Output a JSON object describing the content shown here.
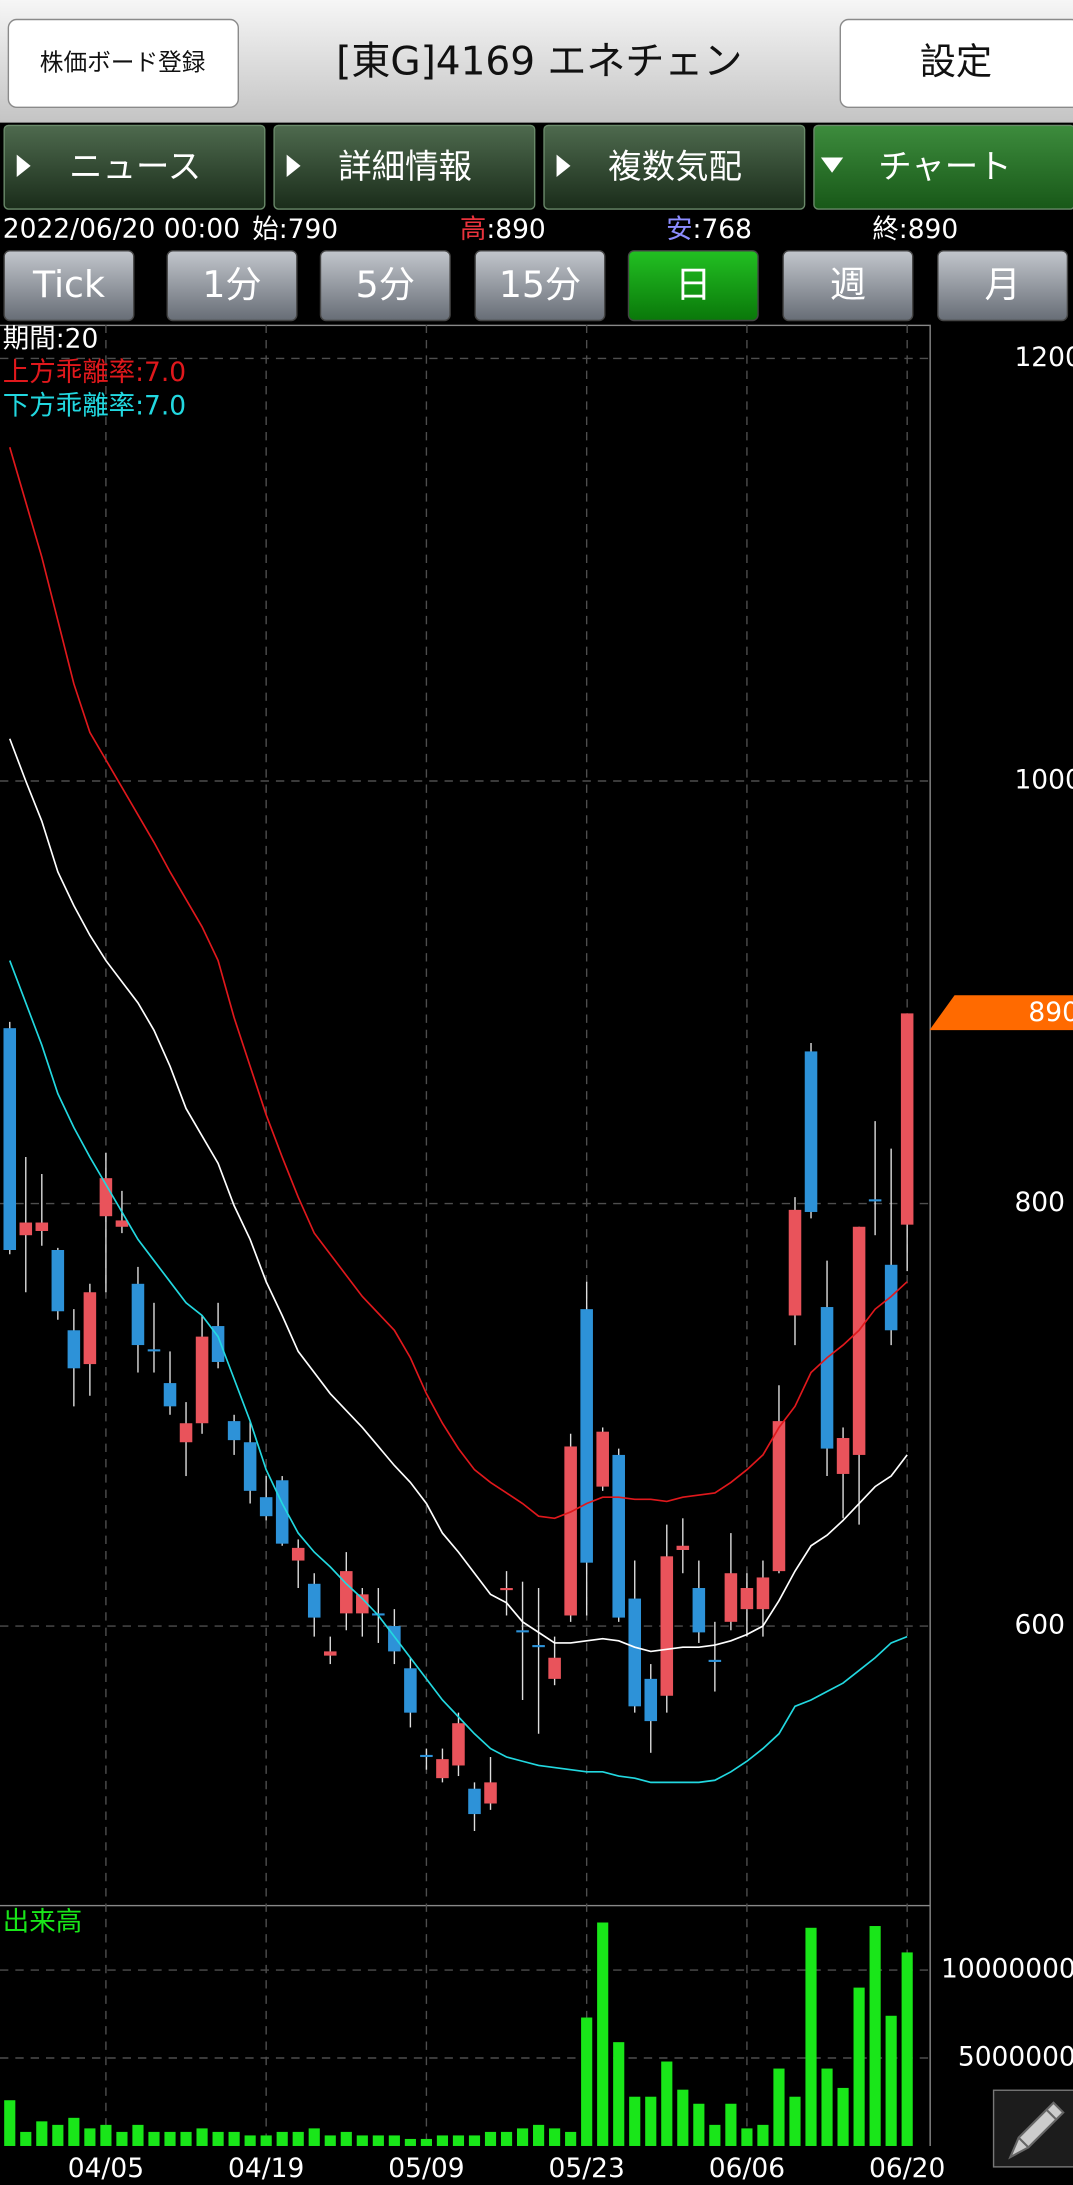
{
  "header": {
    "register_button": "株価ボード登録",
    "title": "[東G]4169 エネチェン",
    "settings_button": "設定"
  },
  "tabs": [
    "ニュース",
    "詳細情報",
    "複数気配",
    "チャート"
  ],
  "active_tab": 3,
  "quote": {
    "datetime": "2022/06/20 00:00",
    "items": [
      {
        "label": "始",
        "text": ":790",
        "color": "#ffffff"
      },
      {
        "label": "高",
        "text": ":890",
        "color": "#e8323c"
      },
      {
        "label": "安",
        "text": ":768",
        "color": "#8c8cff"
      },
      {
        "label": "終",
        "text": ":890",
        "color": "#ffffff"
      }
    ]
  },
  "periods": [
    "Tick",
    "1分",
    "5分",
    "15分",
    "日",
    "週",
    "月"
  ],
  "active_period": 4,
  "chart_data": {
    "type": "candlestick",
    "categories": [
      null,
      null,
      null,
      null,
      null,
      null,
      "04/05",
      null,
      null,
      null,
      null,
      null,
      null,
      null,
      null,
      null,
      "04/19",
      null,
      null,
      null,
      null,
      null,
      null,
      null,
      null,
      null,
      "05/09",
      null,
      null,
      null,
      null,
      null,
      null,
      null,
      null,
      null,
      "05/23",
      null,
      null,
      null,
      null,
      null,
      null,
      null,
      null,
      null,
      "06/06",
      null,
      null,
      null,
      null,
      null,
      null,
      null,
      null,
      null,
      "06/20"
    ],
    "open": [
      883,
      785,
      787,
      778,
      740,
      724,
      794,
      789,
      762,
      731,
      715,
      687,
      696,
      742,
      697,
      687,
      661,
      669,
      631,
      620,
      586,
      606,
      606,
      606,
      600,
      580,
      539,
      528,
      534,
      523,
      516,
      617,
      598,
      591,
      575,
      605,
      750,
      666,
      681,
      613,
      575,
      567,
      636,
      618,
      584,
      602,
      608,
      608,
      626,
      747,
      872,
      751,
      672,
      681,
      802,
      771,
      790
    ],
    "high": [
      886,
      822,
      814,
      779,
      750,
      762,
      824,
      806,
      770,
      753,
      730,
      706,
      747,
      753,
      700,
      697,
      671,
      671,
      641,
      625,
      595,
      635,
      618,
      618,
      608,
      585,
      542,
      542,
      559,
      526,
      538,
      626,
      621,
      618,
      595,
      691,
      763,
      694,
      684,
      631,
      582,
      648,
      651,
      631,
      602,
      644,
      625,
      631,
      714,
      803,
      876,
      773,
      694,
      789,
      839,
      826,
      890
    ],
    "low": [
      776,
      758,
      780,
      745,
      704,
      709,
      758,
      786,
      720,
      720,
      700,
      671,
      691,
      722,
      681,
      658,
      650,
      638,
      618,
      595,
      582,
      598,
      595,
      592,
      582,
      552,
      532,
      526,
      529,
      503,
      513,
      605,
      565,
      549,
      572,
      602,
      605,
      664,
      602,
      559,
      540,
      559,
      625,
      592,
      569,
      598,
      595,
      595,
      625,
      733,
      793,
      671,
      651,
      648,
      785,
      733,
      768
    ],
    "close": [
      778,
      791,
      791,
      749,
      722,
      758,
      812,
      792,
      733,
      730,
      704,
      696,
      737,
      725,
      688,
      664,
      652,
      639,
      637,
      604,
      588,
      626,
      615,
      605,
      588,
      559,
      538,
      537,
      554,
      511,
      526,
      618,
      597,
      590,
      585,
      685,
      630,
      692,
      604,
      562,
      555,
      633,
      638,
      597,
      583,
      625,
      618,
      623,
      697,
      797,
      796,
      684,
      689,
      789,
      801,
      740,
      890
    ],
    "up_color": "#e9535b",
    "down_color": "#2d92d8",
    "lines": [
      {
        "name": "期間:20",
        "color": "#ffffff",
        "values": [
          1020,
          1000,
          981,
          957,
          941,
          927,
          915,
          905,
          895,
          882,
          865,
          845,
          832,
          819,
          799,
          783,
          763,
          747,
          730,
          720,
          710,
          702,
          694,
          685,
          676,
          668,
          658,
          644,
          635,
          625,
          615,
          611,
          602,
          597,
          592,
          592,
          593,
          594,
          593,
          590,
          588,
          589,
          590,
          590,
          591,
          593,
          596,
          600,
          612,
          626,
          638,
          643,
          650,
          658,
          666,
          671,
          681
        ]
      },
      {
        "name": "上方乖離率:7.0",
        "color": "#e0181c",
        "values": [
          1158,
          1132,
          1106,
          1076,
          1046,
          1023,
          1010,
          997,
          984,
          971,
          957,
          944,
          931,
          915,
          888,
          865,
          842,
          822,
          803,
          786,
          776,
          766,
          756,
          748,
          740,
          727,
          710,
          696,
          684,
          674,
          668,
          663,
          658,
          652,
          651,
          654,
          658,
          661,
          661,
          660,
          660,
          659,
          661,
          662,
          663,
          668,
          674,
          681,
          694,
          704,
          720,
          727,
          733,
          740,
          750,
          756,
          763
        ]
      },
      {
        "name": "下方乖離率:7.0",
        "color": "#22d8e0",
        "values": [
          915,
          895,
          875,
          852,
          836,
          822,
          809,
          796,
          783,
          773,
          763,
          753,
          747,
          737,
          717,
          697,
          674,
          658,
          644,
          635,
          628,
          620,
          613,
          605,
          595,
          585,
          575,
          565,
          557,
          549,
          542,
          538,
          536,
          534,
          533,
          532,
          531,
          531,
          529,
          528,
          526,
          526,
          526,
          526,
          527,
          531,
          536,
          542,
          549,
          562,
          565,
          569,
          573,
          579,
          585,
          592,
          595
        ]
      }
    ],
    "ylim": [
      468,
      1216
    ],
    "yticks": [
      600,
      800,
      1000,
      1200
    ],
    "price_tag": 890,
    "price_tag_color": "#ff6a00",
    "grid": true,
    "volume": {
      "title": "出来高",
      "color": "#19e619",
      "values": [
        2600000,
        800000,
        1400000,
        1200000,
        1600000,
        1000000,
        1200000,
        800000,
        1200000,
        800000,
        800000,
        800000,
        1000000,
        800000,
        800000,
        600000,
        600000,
        800000,
        800000,
        1000000,
        600000,
        800000,
        600000,
        600000,
        600000,
        400000,
        400000,
        600000,
        600000,
        600000,
        800000,
        800000,
        1000000,
        1200000,
        1000000,
        800000,
        7300000,
        12700000,
        5900000,
        2800000,
        2800000,
        4800000,
        3200000,
        2400000,
        1200000,
        2400000,
        1000000,
        1200000,
        4400000,
        2800000,
        12400000,
        4400000,
        3300000,
        9000000,
        12500000,
        7400000,
        11000000
      ],
      "ylim": [
        0,
        13700000
      ],
      "yticks": [
        5000000,
        10000000
      ]
    }
  }
}
